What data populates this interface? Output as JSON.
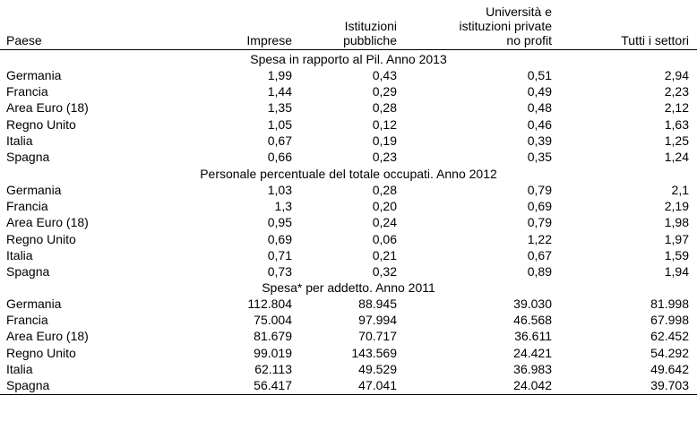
{
  "header": {
    "paese": "Paese",
    "imprese": "Imprese",
    "istituzioni_1": "Istituzioni",
    "istituzioni_2": "pubbliche",
    "universita_1": "Università e",
    "universita_2": "istituzioni private",
    "universita_3": "no profit",
    "tutti": "Tutti i settori"
  },
  "sections": [
    {
      "title": "Spesa in rapporto al Pil. Anno 2013",
      "rows": [
        {
          "paese": "Germania",
          "imprese": "1,99",
          "istituzioni": "0,43",
          "universita": "0,51",
          "tutti": "2,94"
        },
        {
          "paese": "Francia",
          "imprese": "1,44",
          "istituzioni": "0,29",
          "universita": "0,49",
          "tutti": "2,23"
        },
        {
          "paese": "Area Euro (18)",
          "imprese": "1,35",
          "istituzioni": "0,28",
          "universita": "0,48",
          "tutti": "2,12"
        },
        {
          "paese": "Regno Unito",
          "imprese": "1,05",
          "istituzioni": "0,12",
          "universita": "0,46",
          "tutti": "1,63"
        },
        {
          "paese": "Italia",
          "imprese": "0,67",
          "istituzioni": "0,19",
          "universita": "0,39",
          "tutti": "1,25"
        },
        {
          "paese": "Spagna",
          "imprese": "0,66",
          "istituzioni": "0,23",
          "universita": "0,35",
          "tutti": "1,24"
        }
      ]
    },
    {
      "title": "Personale percentuale del totale occupati. Anno 2012",
      "rows": [
        {
          "paese": "Germania",
          "imprese": "1,03",
          "istituzioni": "0,28",
          "universita": "0,79",
          "tutti": "2,1"
        },
        {
          "paese": "Francia",
          "imprese": "1,3",
          "istituzioni": "0,20",
          "universita": "0,69",
          "tutti": "2,19"
        },
        {
          "paese": "Area Euro (18)",
          "imprese": "0,95",
          "istituzioni": "0,24",
          "universita": "0,79",
          "tutti": "1,98"
        },
        {
          "paese": "Regno Unito",
          "imprese": "0,69",
          "istituzioni": "0,06",
          "universita": "1,22",
          "tutti": "1,97"
        },
        {
          "paese": "Italia",
          "imprese": "0,71",
          "istituzioni": "0,21",
          "universita": "0,67",
          "tutti": "1,59"
        },
        {
          "paese": "Spagna",
          "imprese": "0,73",
          "istituzioni": "0,32",
          "universita": "0,89",
          "tutti": "1,94"
        }
      ]
    },
    {
      "title": "Spesa* per addetto. Anno 2011",
      "rows": [
        {
          "paese": "Germania",
          "imprese": "112.804",
          "istituzioni": "88.945",
          "universita": "39.030",
          "tutti": "81.998"
        },
        {
          "paese": "Francia",
          "imprese": "75.004",
          "istituzioni": "97.994",
          "universita": "46.568",
          "tutti": "67.998"
        },
        {
          "paese": "Area Euro (18)",
          "imprese": "81.679",
          "istituzioni": "70.717",
          "universita": "36.611",
          "tutti": "62.452"
        },
        {
          "paese": "Regno Unito",
          "imprese": "99.019",
          "istituzioni": "143.569",
          "universita": "24.421",
          "tutti": "54.292"
        },
        {
          "paese": "Italia",
          "imprese": "62.113",
          "istituzioni": "49.529",
          "universita": "36.983",
          "tutti": "49.642"
        },
        {
          "paese": "Spagna",
          "imprese": "56.417",
          "istituzioni": "47.041",
          "universita": "24.042",
          "tutti": "39.703"
        }
      ]
    }
  ]
}
